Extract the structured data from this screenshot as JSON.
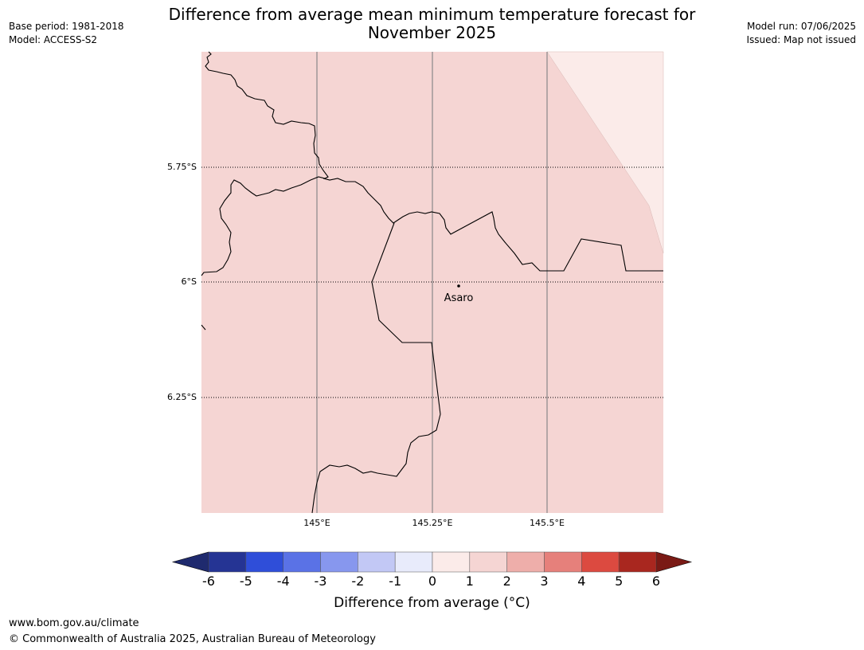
{
  "header": {
    "base_period": "Base period: 1981-2018",
    "model": "Model: ACCESS-S2",
    "model_run": "Model run: 07/06/2025",
    "issued": "Issued: Map not issued",
    "title_line1": "Difference from average mean minimum temperature forecast for",
    "title_line2": "November 2025"
  },
  "map": {
    "latitude_labels": [
      "5.75°S",
      "6°S",
      "6.25°S"
    ],
    "longitude_labels": [
      "145°E",
      "145.25°E",
      "145.5°E"
    ],
    "place": {
      "name": "Asaro"
    },
    "region_values": {
      "main_region": "1 to 2",
      "northeast_corner": "0 to 1"
    }
  },
  "colorbar": {
    "ticks": [
      "-6",
      "-5",
      "-4",
      "-3",
      "-2",
      "-1",
      "0",
      "1",
      "2",
      "3",
      "4",
      "5",
      "6"
    ],
    "under_color": "#1f2a6e",
    "over_color": "#7a1a15",
    "colors": [
      "#253494",
      "#2f4ed9",
      "#5a72e6",
      "#8797ee",
      "#c2c8f5",
      "#e8ebfb",
      "#fbebe9",
      "#f5d5d3",
      "#eeaeaa",
      "#e6807b",
      "#dc4a40",
      "#a9271f"
    ],
    "label": "Difference from average (°C)"
  },
  "footer": {
    "url": "www.bom.gov.au/climate",
    "copyright": "© Commonwealth of Australia 2025, Australian Bureau of Meteorology"
  }
}
